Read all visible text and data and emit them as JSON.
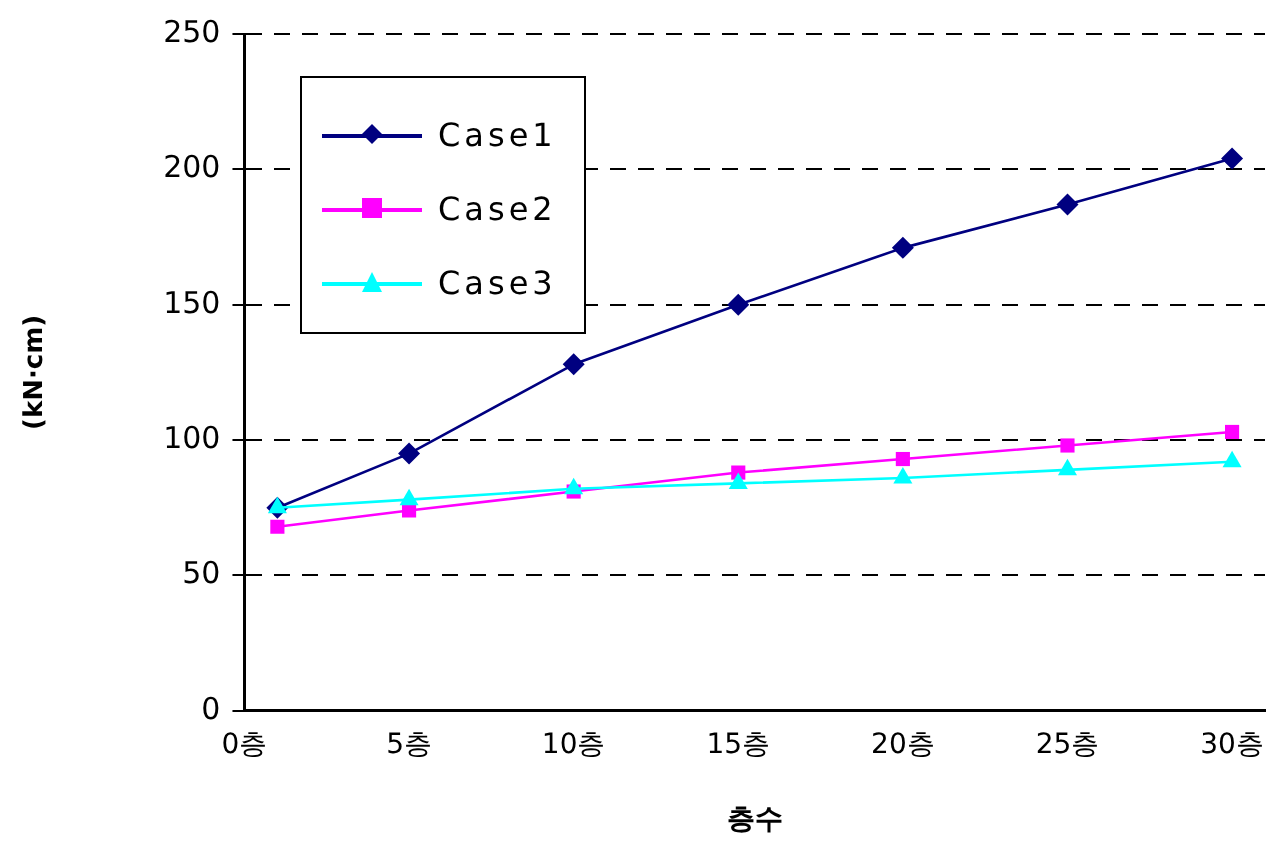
{
  "chart_data": {
    "type": "line",
    "xlabel": "층수",
    "ylabel": "(kN·cm)",
    "x": [
      1,
      5,
      10,
      15,
      20,
      25,
      30
    ],
    "xlim": [
      0,
      31
    ],
    "xticks": [
      {
        "value": 0,
        "label": "0층"
      },
      {
        "value": 5,
        "label": "5층"
      },
      {
        "value": 10,
        "label": "10층"
      },
      {
        "value": 15,
        "label": "15층"
      },
      {
        "value": 20,
        "label": "20층"
      },
      {
        "value": 25,
        "label": "25층"
      },
      {
        "value": 30,
        "label": "30층"
      }
    ],
    "ylim": [
      0,
      250
    ],
    "yticks": [
      0,
      50,
      100,
      150,
      200,
      250
    ],
    "grid": "y",
    "legend": "top left",
    "line_style": "solid",
    "series": [
      {
        "name": "Case1",
        "color": "#000080",
        "marker": "diamond",
        "values": [
          75,
          95,
          128,
          150,
          171,
          187,
          204
        ]
      },
      {
        "name": "Case2",
        "color": "#ff00ff",
        "marker": "square",
        "values": [
          68,
          74,
          81,
          88,
          93,
          98,
          103
        ]
      },
      {
        "name": "Case3",
        "color": "#00ffff",
        "marker": "triangle",
        "values": [
          75,
          78,
          82,
          84,
          86,
          89,
          92
        ]
      }
    ]
  }
}
